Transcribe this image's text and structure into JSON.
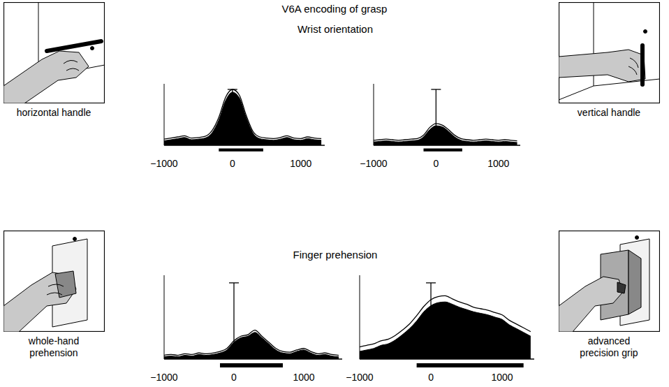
{
  "title": "V6A encoding of grasp",
  "row_titles": [
    "Wrist orientation",
    "Finger prehension"
  ],
  "chart_data": [
    {
      "type": "area",
      "title": "horizontal handle",
      "x": [
        -1000,
        -900,
        -800,
        -700,
        -600,
        -500,
        -400,
        -300,
        -200,
        -100,
        0,
        100,
        200,
        300,
        400,
        500,
        600,
        700,
        800,
        900,
        1000,
        1100,
        1200,
        1300
      ],
      "series": [
        {
          "type": "area",
          "color": "#000000",
          "values": [
            8,
            10,
            12,
            14,
            10,
            11,
            13,
            22,
            45,
            80,
            95,
            85,
            50,
            22,
            12,
            10,
            9,
            11,
            14,
            10,
            9,
            12,
            10,
            9
          ]
        },
        {
          "type": "line",
          "color": "#000000",
          "values": [
            11,
            13,
            15,
            17,
            13,
            14,
            16,
            26,
            50,
            86,
            100,
            90,
            54,
            25,
            15,
            13,
            12,
            14,
            17,
            13,
            12,
            15,
            13,
            12
          ]
        }
      ],
      "xlim": [
        -1000,
        1350
      ],
      "xticks": [
        {
          "value": -1000,
          "label": "−1000"
        },
        0,
        1000
      ],
      "ylim": [
        0,
        110
      ],
      "yticks": [],
      "tick_labels": "x",
      "scale_bar": {
        "x": 0,
        "height": 100
      },
      "epoch": [
        -200,
        450
      ]
    },
    {
      "type": "area",
      "title": "vertical handle",
      "x": [
        -1000,
        -900,
        -800,
        -700,
        -600,
        -500,
        -400,
        -300,
        -200,
        -100,
        0,
        100,
        200,
        300,
        400,
        500,
        600,
        700,
        800,
        900,
        1000,
        1100,
        1200,
        1300
      ],
      "series": [
        {
          "type": "area",
          "color": "#000000",
          "values": [
            6,
            7,
            8,
            7,
            6,
            7,
            8,
            9,
            15,
            28,
            35,
            33,
            25,
            15,
            9,
            7,
            6,
            7,
            8,
            7,
            6,
            7,
            6,
            5
          ]
        },
        {
          "type": "line",
          "color": "#000000",
          "values": [
            9,
            10,
            11,
            10,
            9,
            10,
            11,
            12,
            18,
            32,
            39,
            36,
            28,
            18,
            12,
            10,
            9,
            10,
            11,
            10,
            9,
            10,
            9,
            8
          ]
        }
      ],
      "xlim": [
        -1000,
        1350
      ],
      "xticks": [
        {
          "value": -1000,
          "label": "−1000"
        },
        0,
        1000
      ],
      "ylim": [
        0,
        110
      ],
      "yticks": [],
      "tick_labels": "x",
      "scale_bar": {
        "x": 0,
        "height": 100
      },
      "epoch": [
        -200,
        420
      ]
    },
    {
      "type": "area",
      "title": "whole-hand prehension",
      "x": [
        -1000,
        -900,
        -800,
        -700,
        -600,
        -500,
        -400,
        -300,
        -200,
        -100,
        0,
        100,
        200,
        300,
        400,
        500,
        600,
        700,
        800,
        900,
        1000,
        1100,
        1200,
        1300,
        1400,
        1500
      ],
      "series": [
        {
          "type": "area",
          "color": "#000000",
          "values": [
            3,
            4,
            3,
            5,
            4,
            6,
            5,
            6,
            8,
            12,
            22,
            28,
            30,
            35,
            28,
            20,
            12,
            8,
            7,
            10,
            12,
            8,
            5,
            6,
            4,
            3
          ]
        },
        {
          "type": "line",
          "color": "#000000",
          "values": [
            5,
            6,
            5,
            7,
            6,
            8,
            7,
            8,
            10,
            14,
            24,
            30,
            32,
            38,
            30,
            22,
            14,
            10,
            9,
            12,
            14,
            10,
            7,
            8,
            6,
            5
          ]
        }
      ],
      "xlim": [
        -1000,
        1550
      ],
      "xticks": [
        {
          "value": -1000,
          "label": "−1000"
        },
        0,
        1000
      ],
      "ylim": [
        0,
        110
      ],
      "yticks": [],
      "tick_labels": "x",
      "scale_bar": {
        "x": 0,
        "height": 100
      },
      "epoch": [
        -200,
        700
      ]
    },
    {
      "type": "area",
      "title": "advanced precision grip",
      "x": [
        -1000,
        -900,
        -800,
        -700,
        -600,
        -500,
        -400,
        -300,
        -200,
        -100,
        0,
        100,
        200,
        300,
        400,
        500,
        600,
        700,
        800,
        900,
        1000,
        1100,
        1200,
        1300,
        1400
      ],
      "series": [
        {
          "type": "area",
          "color": "#000000",
          "values": [
            10,
            12,
            14,
            18,
            20,
            25,
            32,
            40,
            50,
            62,
            70,
            74,
            75,
            72,
            68,
            65,
            62,
            60,
            58,
            55,
            52,
            45,
            40,
            35,
            30
          ]
        },
        {
          "type": "line",
          "color": "#000000",
          "values": [
            16,
            18,
            20,
            24,
            26,
            31,
            38,
            46,
            57,
            69,
            78,
            82,
            83,
            79,
            75,
            72,
            68,
            66,
            64,
            61,
            58,
            51,
            46,
            41,
            36
          ]
        }
      ],
      "xlim": [
        -1000,
        1450
      ],
      "xticks": [
        {
          "value": -1000,
          "label": "−1000"
        },
        0,
        1000
      ],
      "ylim": [
        0,
        110
      ],
      "yticks": [],
      "tick_labels": "x",
      "scale_bar": {
        "x": 0,
        "height": 100
      },
      "epoch": [
        -200,
        1300
      ]
    }
  ]
}
